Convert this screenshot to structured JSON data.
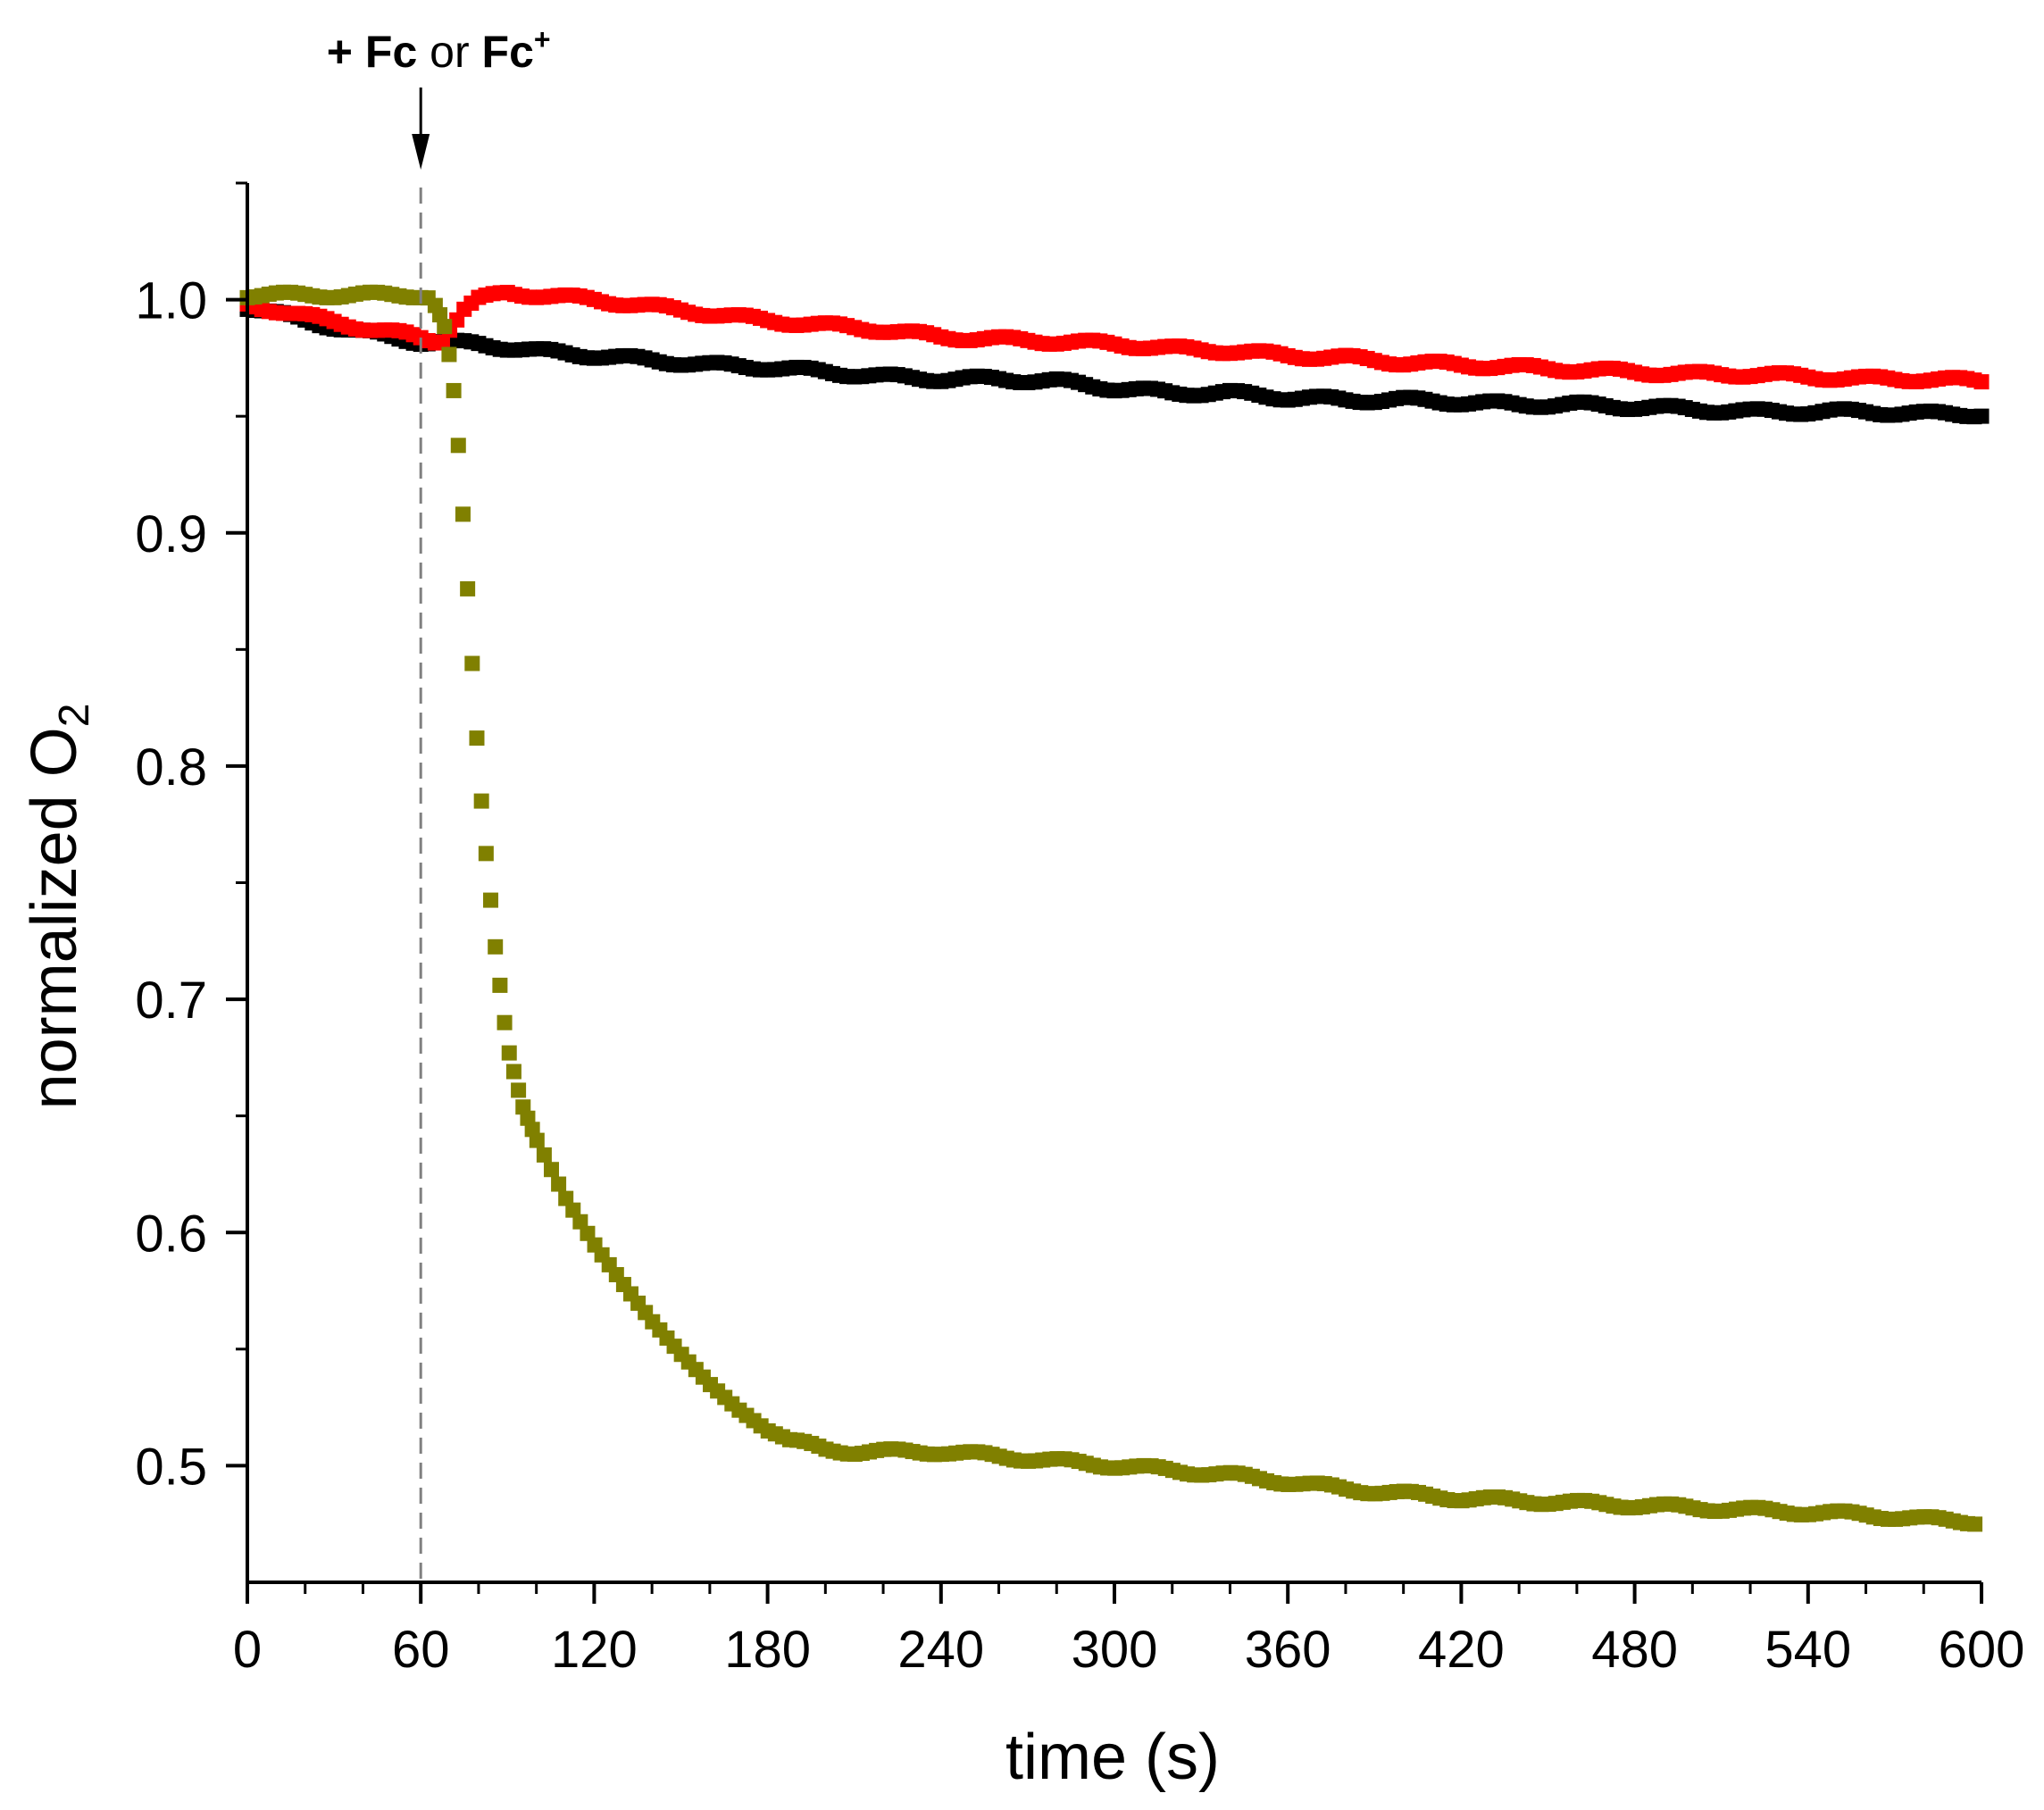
{
  "chart_data": {
    "type": "scatter",
    "title": "",
    "xlabel": "time (s)",
    "ylabel_main": "normalized O",
    "ylabel_sub": "2",
    "xlim": [
      0,
      600
    ],
    "ylim": [
      0.45,
      1.05
    ],
    "x_ticks": [
      0,
      60,
      120,
      180,
      240,
      300,
      360,
      420,
      480,
      540,
      600
    ],
    "x_tick_labels": [
      "0",
      "60",
      "120",
      "180",
      "240",
      "300",
      "360",
      "420",
      "480",
      "540",
      "600"
    ],
    "y_ticks": [
      0.5,
      0.6,
      0.7,
      0.8,
      0.9,
      1.0
    ],
    "y_tick_labels": [
      "0.5",
      "0.6",
      "0.7",
      "0.8",
      "0.9",
      "1.0"
    ],
    "annotation": {
      "plus": "+",
      "fc": "Fc",
      "or": "or",
      "fc_plus": "Fc",
      "superscript": "+",
      "x": 60
    },
    "series": [
      {
        "name": "black",
        "color": "#000000",
        "x": [
          0,
          20,
          40,
          60,
          80,
          100,
          120,
          140,
          160,
          180,
          200,
          220,
          240,
          260,
          280,
          300,
          320,
          340,
          360,
          380,
          400,
          420,
          440,
          460,
          480,
          500,
          520,
          540,
          560,
          580,
          600
        ],
        "y": [
          0.997,
          0.991,
          0.986,
          0.982,
          0.981,
          0.978,
          0.976,
          0.974,
          0.972,
          0.971,
          0.969,
          0.967,
          0.966,
          0.966,
          0.965,
          0.962,
          0.96,
          0.96,
          0.958,
          0.957,
          0.957,
          0.956,
          0.955,
          0.955,
          0.954,
          0.953,
          0.952,
          0.952,
          0.952,
          0.951,
          0.951
        ]
      },
      {
        "name": "red",
        "color": "#ff0000",
        "x": [
          0,
          20,
          40,
          55,
          62,
          67,
          70,
          75,
          80,
          90,
          100,
          120,
          140,
          160,
          180,
          200,
          220,
          240,
          260,
          280,
          300,
          320,
          340,
          360,
          380,
          400,
          420,
          440,
          460,
          480,
          500,
          520,
          540,
          560,
          580,
          600
        ],
        "y": [
          0.998,
          0.993,
          0.988,
          0.985,
          0.983,
          0.982,
          0.988,
          0.996,
          1.0,
          1.003,
          1.002,
          1.0,
          0.997,
          0.994,
          0.991,
          0.989,
          0.987,
          0.984,
          0.983,
          0.982,
          0.981,
          0.979,
          0.978,
          0.976,
          0.975,
          0.973,
          0.972,
          0.971,
          0.97,
          0.969,
          0.968,
          0.968,
          0.967,
          0.966,
          0.966,
          0.965
        ]
      },
      {
        "name": "olive",
        "color": "#808000",
        "x": [
          0,
          20,
          40,
          60,
          64,
          68,
          70,
          72,
          74,
          76,
          78,
          80,
          82,
          84,
          86,
          88,
          90,
          95,
          100,
          110,
          120,
          130,
          140,
          150,
          160,
          170,
          180,
          190,
          200,
          210,
          220,
          240,
          260,
          280,
          300,
          320,
          340,
          360,
          380,
          400,
          420,
          440,
          460,
          480,
          500,
          520,
          540,
          560,
          580,
          600
        ],
        "y": [
          1.002,
          1.002,
          1.002,
          1.002,
          1.0,
          0.99,
          0.975,
          0.955,
          0.92,
          0.88,
          0.84,
          0.8,
          0.77,
          0.745,
          0.72,
          0.7,
          0.68,
          0.655,
          0.64,
          0.615,
          0.595,
          0.578,
          0.562,
          0.548,
          0.535,
          0.524,
          0.515,
          0.51,
          0.507,
          0.506,
          0.506,
          0.506,
          0.504,
          0.502,
          0.5,
          0.498,
          0.496,
          0.493,
          0.49,
          0.488,
          0.486,
          0.485,
          0.484,
          0.483,
          0.482,
          0.481,
          0.48,
          0.479,
          0.477,
          0.476
        ]
      }
    ]
  }
}
